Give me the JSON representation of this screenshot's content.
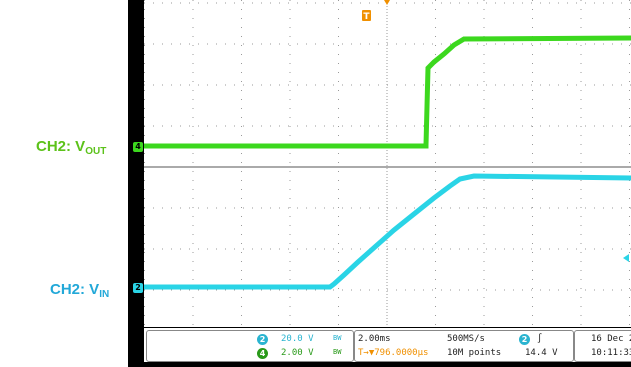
{
  "labels": {
    "vout": {
      "prefix": "CH2: V",
      "sub": "OUT"
    },
    "vin": {
      "prefix": "CH2: V",
      "sub": "IN"
    }
  },
  "markers": {
    "trigger": "T",
    "ch4": "4",
    "ch2": "2"
  },
  "status": {
    "ch2": {
      "num": "2",
      "scale": "20.0 V",
      "coupling": "BW"
    },
    "ch4": {
      "num": "4",
      "scale": "2.00 V",
      "coupling": "BW"
    },
    "timebase": "2.00ms",
    "trigger_pos": "T→▼796.0000μs",
    "sample_rate": "500MS/s",
    "record_length": "10M points",
    "trig_ch": "2",
    "trig_slope": "∫",
    "trig_level": "14.4 V",
    "date": "16 Dec  2",
    "time": "10:11:33"
  },
  "colors": {
    "vout": "#3cd81e",
    "vin": "#2ad4e6",
    "trigger": "#f09000",
    "grid": "#9a9a9a"
  }
}
